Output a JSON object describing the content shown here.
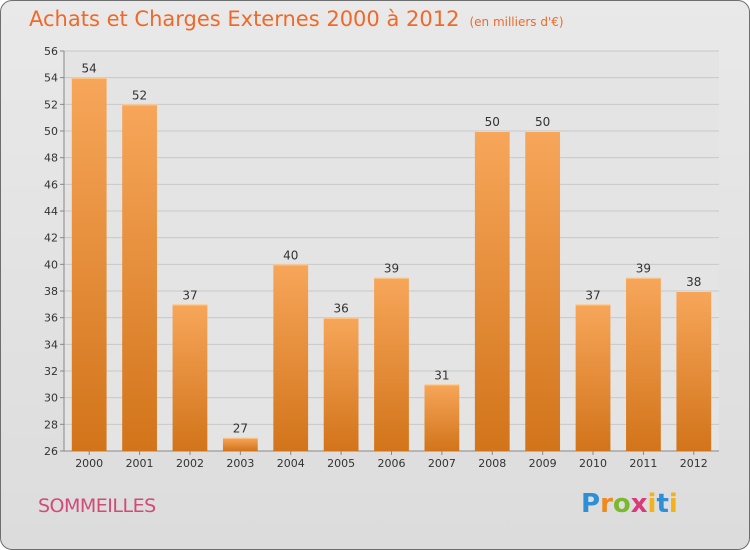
{
  "chart_data": {
    "type": "bar",
    "title": "Achats et Charges Externes 2000 à 2012",
    "subtitle": "(en milliers d'€)",
    "categories": [
      "2000",
      "2001",
      "2002",
      "2003",
      "2004",
      "2005",
      "2006",
      "2007",
      "2008",
      "2009",
      "2010",
      "2011",
      "2012"
    ],
    "values": [
      54,
      52,
      37,
      27,
      40,
      36,
      39,
      31,
      50,
      50,
      37,
      39,
      38
    ],
    "ylim": [
      26,
      56
    ],
    "yticks": [
      26,
      28,
      30,
      32,
      34,
      36,
      38,
      40,
      42,
      44,
      46,
      48,
      50,
      52,
      54,
      56
    ],
    "grid": true,
    "bar_color_top": "#f7a65a",
    "bar_color_bottom": "#d2741a"
  },
  "place_name": "SOMMEILLES",
  "logo": {
    "text": "Proxiti",
    "letters": [
      "P",
      "r",
      "o",
      "x",
      "i",
      "t",
      "i"
    ]
  }
}
